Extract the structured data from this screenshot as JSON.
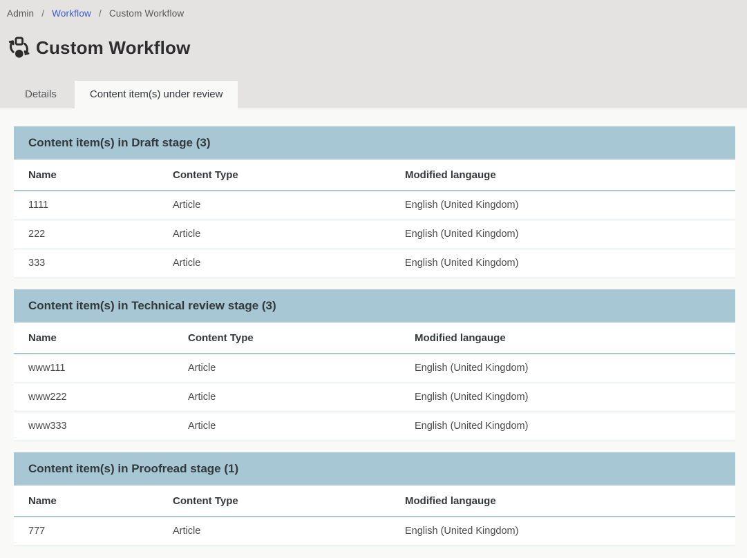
{
  "breadcrumb": {
    "separator": "/",
    "items": [
      {
        "label": "Admin"
      },
      {
        "label": "Workflow"
      },
      {
        "label": "Custom Workflow"
      }
    ]
  },
  "page": {
    "title": "Custom Workflow",
    "icon": "workflow-icon"
  },
  "tabs": [
    {
      "label": "Details",
      "active": false
    },
    {
      "label": "Content item(s) under review",
      "active": true
    }
  ],
  "sections": [
    {
      "title": "Content item(s) in Draft stage (3)",
      "columns": [
        "Name",
        "Content Type",
        "Modified langauge"
      ],
      "rows": [
        [
          "1111",
          "Article",
          "English (United Kingdom)"
        ],
        [
          "222",
          "Article",
          "English (United Kingdom)"
        ],
        [
          "333",
          "Article",
          "English (United Kingdom)"
        ]
      ]
    },
    {
      "title": "Content item(s) in Technical review stage (3)",
      "columns": [
        "Name",
        "Content Type",
        "Modified langauge"
      ],
      "rows": [
        [
          "www111",
          "Article",
          "English (United Kingdom)"
        ],
        [
          "www222",
          "Article",
          "English (United Kingdom)"
        ],
        [
          "www333",
          "Article",
          "English (United Kingdom)"
        ]
      ]
    },
    {
      "title": "Content item(s) in Proofread stage (1)",
      "columns": [
        "Name",
        "Content Type",
        "Modified langauge"
      ],
      "rows": [
        [
          "777",
          "Article",
          "English (United Kingdom)"
        ]
      ]
    }
  ],
  "colors": {
    "section_header_bg": "#a6c7d3",
    "top_header_bg": "#e4e3e1",
    "content_bg": "#f9f9f8",
    "link_blue": "#3a5bc7",
    "row_border": "#d6e3e9",
    "text_dark": "#2d2d30",
    "text_body": "#4a4a4a"
  }
}
